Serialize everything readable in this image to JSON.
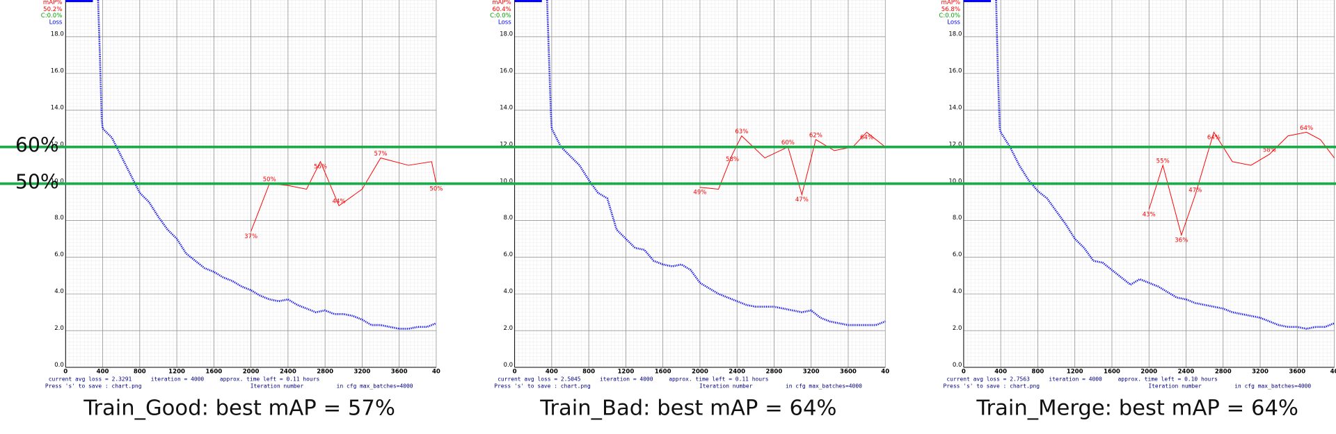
{
  "chart_data": [
    {
      "type": "line",
      "caption": "Train_Good: best mAP = 57%",
      "map_current": "50.2%",
      "c_label": "C:0.0%",
      "status_loss": "current avg loss = 2.3291",
      "status_iteration": "iteration = 4000",
      "status_time": "approx. time left = 0.11 hours",
      "save_hint": "Press 's' to save : chart.png",
      "xlabel": "Iteration number",
      "max_batches": "in cfg max_batches=4000",
      "xlim": [
        0,
        4000
      ],
      "xticks": [
        0,
        400,
        800,
        1200,
        1600,
        2000,
        2400,
        2800,
        3200,
        3600,
        {
          "value": 4000,
          "label": "40"
        }
      ],
      "ylim": [
        0,
        20
      ],
      "yticks": [
        {
          "value": 0,
          "label": "0.0"
        },
        {
          "value": 2,
          "label": "2.0"
        },
        {
          "value": 4,
          "label": "4.0"
        },
        {
          "value": 6,
          "label": "6.0"
        },
        {
          "value": 8,
          "label": "8.0"
        },
        {
          "value": 10,
          "label": "10.0"
        },
        {
          "value": 12,
          "label": "12.0"
        },
        {
          "value": 14,
          "label": "14.0"
        },
        {
          "value": 16,
          "label": "16.0"
        },
        {
          "value": 18,
          "label": "18.0"
        }
      ],
      "y2lim": [
        0,
        100
      ],
      "grid": true,
      "series": [
        {
          "name": "Loss",
          "color": "#0000ff",
          "x": [
            350,
            370,
            390,
            400,
            500,
            600,
            700,
            800,
            900,
            1000,
            1100,
            1200,
            1300,
            1400,
            1500,
            1600,
            1700,
            1800,
            1900,
            2000,
            2100,
            2200,
            2300,
            2400,
            2500,
            2600,
            2700,
            2800,
            2900,
            3000,
            3100,
            3200,
            3300,
            3400,
            3500,
            3600,
            3700,
            3800,
            3900,
            4000
          ],
          "values": [
            20,
            17,
            13.5,
            13,
            12.5,
            11.5,
            10.5,
            9.5,
            9,
            8.2,
            7.5,
            7,
            6.2,
            5.8,
            5.4,
            5.2,
            4.9,
            4.7,
            4.4,
            4.2,
            3.9,
            3.7,
            3.6,
            3.7,
            3.4,
            3.2,
            3.0,
            3.1,
            2.9,
            2.9,
            2.8,
            2.6,
            2.3,
            2.3,
            2.2,
            2.1,
            2.1,
            2.2,
            2.2,
            2.4
          ]
        },
        {
          "name": "mAP%",
          "color": "#ff0000",
          "axis": "y2",
          "x": [
            2000,
            2200,
            2400,
            2600,
            2750,
            2950,
            3200,
            3400,
            3700,
            3950,
            4000
          ],
          "values": [
            37,
            50,
            49.5,
            48.5,
            56,
            44,
            48.5,
            57,
            55,
            56,
            50
          ],
          "value_labels": [
            "37%",
            "50%",
            null,
            null,
            "56%",
            "44%",
            null,
            "57%",
            null,
            null,
            "50%"
          ]
        }
      ]
    },
    {
      "type": "line",
      "caption": "Train_Bad: best mAP = 64%",
      "map_current": "60.4%",
      "c_label": "C:0.0%",
      "status_loss": "current avg loss = 2.5045",
      "status_iteration": "iteration = 4000",
      "status_time": "approx. time left = 0.11 hours",
      "save_hint": "Press 's' to save : chart.png",
      "xlabel": "Iteration number",
      "max_batches": "in cfg max_batches=4000",
      "xlim": [
        0,
        4000
      ],
      "xticks": [
        0,
        400,
        800,
        1200,
        1600,
        2000,
        2400,
        2800,
        3200,
        3600,
        {
          "value": 4000,
          "label": "40"
        }
      ],
      "ylim": [
        0,
        20
      ],
      "yticks": [
        {
          "value": 0,
          "label": "0.0"
        },
        {
          "value": 2,
          "label": "2.0"
        },
        {
          "value": 4,
          "label": "4.0"
        },
        {
          "value": 6,
          "label": "6.0"
        },
        {
          "value": 8,
          "label": "8.0"
        },
        {
          "value": 10,
          "label": "10.0"
        },
        {
          "value": 12,
          "label": "12.0"
        },
        {
          "value": 14,
          "label": "14.0"
        },
        {
          "value": 16,
          "label": "16.0"
        },
        {
          "value": 18,
          "label": "18.0"
        }
      ],
      "y2lim": [
        0,
        100
      ],
      "grid": true,
      "series": [
        {
          "name": "Loss",
          "color": "#0000ff",
          "x": [
            350,
            370,
            390,
            400,
            500,
            600,
            700,
            800,
            900,
            1000,
            1100,
            1200,
            1300,
            1400,
            1500,
            1600,
            1700,
            1800,
            1900,
            2000,
            2100,
            2200,
            2300,
            2400,
            2500,
            2600,
            2700,
            2800,
            2900,
            3000,
            3100,
            3200,
            3300,
            3400,
            3500,
            3600,
            3700,
            3800,
            3900,
            4000
          ],
          "values": [
            20,
            17,
            14,
            13,
            12,
            11.5,
            11,
            10.2,
            9.5,
            9.2,
            7.5,
            7,
            6.5,
            6.4,
            5.8,
            5.6,
            5.5,
            5.6,
            5.3,
            4.6,
            4.3,
            4,
            3.8,
            3.6,
            3.4,
            3.3,
            3.3,
            3.3,
            3.2,
            3.1,
            3.0,
            3.1,
            2.7,
            2.5,
            2.4,
            2.3,
            2.3,
            2.3,
            2.3,
            2.5
          ]
        },
        {
          "name": "mAP%",
          "color": "#ff0000",
          "axis": "y2",
          "x": [
            2000,
            2200,
            2350,
            2450,
            2700,
            2950,
            3100,
            3250,
            3450,
            3650,
            3800,
            4000
          ],
          "values": [
            49,
            48.5,
            58,
            63,
            57,
            60,
            47,
            62,
            59,
            60,
            64,
            60
          ],
          "value_labels": [
            "49%",
            null,
            "58%",
            "63%",
            null,
            "60%",
            "47%",
            "62%",
            null,
            null,
            "64%",
            null
          ]
        }
      ]
    },
    {
      "type": "line",
      "caption": "Train_Merge: best mAP = 64%",
      "map_current": "56.8%",
      "c_label": "C:0.0%",
      "status_loss": "current avg loss = 2.7563",
      "status_iteration": "iteration = 4000",
      "status_time": "approx. time left = 0.10 hours",
      "save_hint": "Press 's' to save : chart.png",
      "xlabel": "Iteration number",
      "max_batches": "in cfg max_batches=4000",
      "xlim": [
        0,
        4000
      ],
      "xticks": [
        0,
        400,
        800,
        1200,
        1600,
        2000,
        2400,
        2800,
        3200,
        3600,
        {
          "value": 4000,
          "label": "40"
        }
      ],
      "ylim": [
        0,
        20
      ],
      "yticks": [
        {
          "value": 0,
          "label": "0.0"
        },
        {
          "value": 2,
          "label": "2.0"
        },
        {
          "value": 4,
          "label": "4.0"
        },
        {
          "value": 6,
          "label": "6.0"
        },
        {
          "value": 8,
          "label": "8.0"
        },
        {
          "value": 10,
          "label": "10.0"
        },
        {
          "value": 12,
          "label": "12.0"
        },
        {
          "value": 14,
          "label": "14.0"
        },
        {
          "value": 16,
          "label": "16.0"
        },
        {
          "value": 18,
          "label": "18.0"
        }
      ],
      "y2lim": [
        0,
        100
      ],
      "grid": true,
      "series": [
        {
          "name": "Loss",
          "color": "#0000ff",
          "x": [
            350,
            370,
            390,
            400,
            500,
            600,
            700,
            800,
            900,
            1000,
            1100,
            1200,
            1300,
            1400,
            1500,
            1600,
            1700,
            1800,
            1900,
            2000,
            2100,
            2200,
            2300,
            2400,
            2500,
            2600,
            2700,
            2800,
            2900,
            3000,
            3100,
            3200,
            3300,
            3400,
            3500,
            3600,
            3700,
            3800,
            3900,
            4000
          ],
          "values": [
            20,
            16,
            13,
            12.8,
            12,
            11,
            10.2,
            9.6,
            9.2,
            8.5,
            7.8,
            7,
            6.5,
            5.8,
            5.7,
            5.3,
            4.9,
            4.5,
            4.8,
            4.6,
            4.4,
            4.1,
            3.8,
            3.7,
            3.5,
            3.4,
            3.3,
            3.2,
            3.0,
            2.9,
            2.8,
            2.7,
            2.5,
            2.3,
            2.2,
            2.2,
            2.1,
            2.2,
            2.2,
            2.4
          ]
        },
        {
          "name": "mAP%",
          "color": "#ff0000",
          "axis": "y2",
          "x": [
            2000,
            2150,
            2350,
            2500,
            2700,
            2900,
            3100,
            3300,
            3500,
            3700,
            3850,
            4000
          ],
          "values": [
            43,
            55,
            36,
            47,
            64,
            56,
            55,
            58,
            63,
            64,
            62,
            57
          ],
          "value_labels": [
            "43%",
            "55%",
            "36%",
            "47%",
            "64%",
            null,
            null,
            "58%",
            null,
            "64%",
            null,
            null
          ]
        }
      ]
    }
  ],
  "reference_lines": [
    {
      "value": 60,
      "label": "60%"
    },
    {
      "value": 50,
      "label": "50%"
    }
  ],
  "reference_color": "#1aaa4a"
}
